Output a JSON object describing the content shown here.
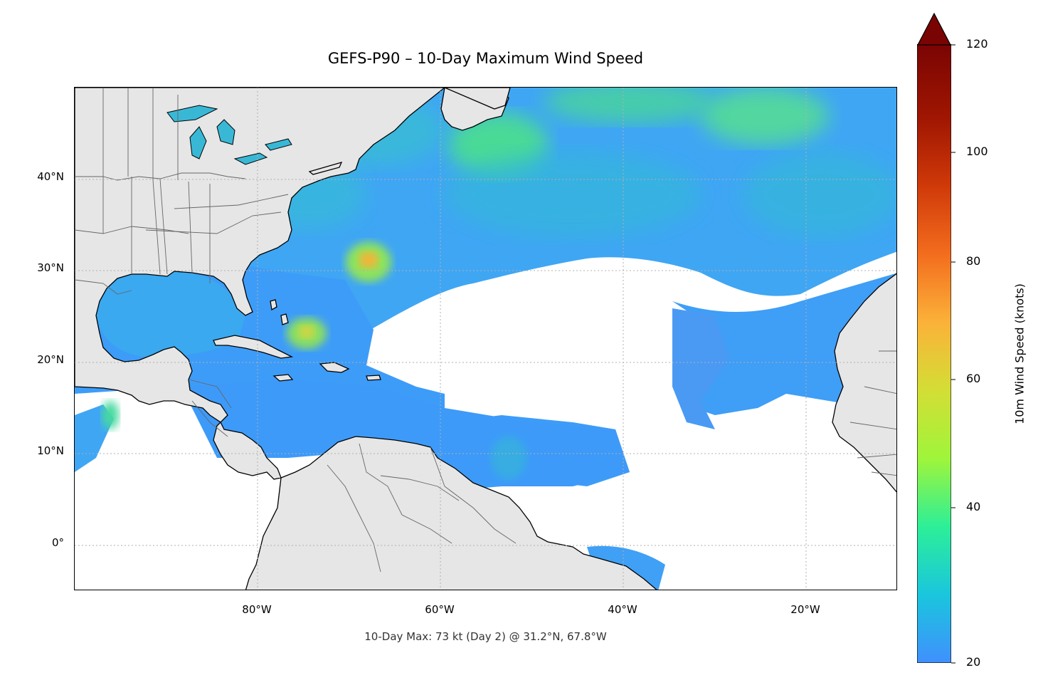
{
  "title": "GEFS-P90 – 10-Day Maximum Wind Speed",
  "footer": "10-Day Max: 73 kt (Day 2) @ 31.2°N, 67.8°W",
  "map": {
    "lat_range": [
      -5,
      50
    ],
    "lon_range": [
      -100,
      -10
    ],
    "lat_ticks": [
      "40°N",
      "30°N",
      "20°N",
      "10°N",
      "0°"
    ],
    "lon_ticks": [
      "80°W",
      "60°W",
      "40°W",
      "20°W"
    ],
    "land_color": "#e6e6e6",
    "coastline_color": "#000000",
    "border_color": "#666666",
    "gridlines": true
  },
  "colorbar": {
    "label": "10m Wind Speed (knots)",
    "ticks": [
      "20",
      "40",
      "60",
      "80",
      "100",
      "120"
    ],
    "range": [
      20,
      120
    ],
    "extend": "max",
    "extend_color": "#7a0403",
    "colors": [
      "#4090fe",
      "#1ac6dd",
      "#2cef98",
      "#9ff53b",
      "#d3de35",
      "#fbb239",
      "#f36d1e",
      "#d03a09",
      "#a01602",
      "#7a0403"
    ]
  },
  "annotation": {
    "max_speed": "73 kt",
    "max_day": "Day 2",
    "max_location": "31.2°N, 67.8°W"
  }
}
